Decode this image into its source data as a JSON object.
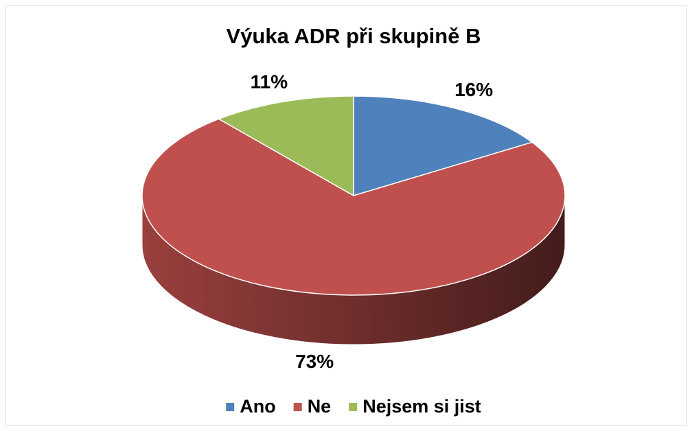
{
  "chart_data": {
    "type": "pie",
    "title": "Výuka ADR při skupině B",
    "categories": [
      "Ano",
      "Ne",
      "Nejsem si jist"
    ],
    "values": [
      16,
      73,
      11
    ],
    "value_labels": [
      "16%",
      "73%",
      "11%"
    ],
    "colors": [
      "#4f81bd",
      "#c0504d",
      "#9bbb59"
    ],
    "legend": "bottom"
  }
}
